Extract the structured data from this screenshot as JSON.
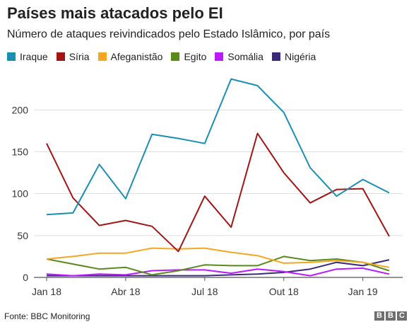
{
  "title": "Países mais atacados pelo EI",
  "subtitle": "Número de ataques reivindicados pelo Estado Islâmico, por país",
  "source": "Fonte: BBC Monitoring",
  "logo": [
    "B",
    "B",
    "C"
  ],
  "chart_data": {
    "type": "line",
    "x": [
      "2018-01",
      "2018-02",
      "2018-03",
      "2018-04",
      "2018-05",
      "2018-06",
      "2018-07",
      "2018-08",
      "2018-09",
      "2018-10",
      "2018-11",
      "2018-12",
      "2019-01",
      "2019-02"
    ],
    "xticks": [
      {
        "index": 0,
        "label": "Jan 18"
      },
      {
        "index": 3,
        "label": "Abr 18"
      },
      {
        "index": 6,
        "label": "Jul 18"
      },
      {
        "index": 9,
        "label": "Out 18"
      },
      {
        "index": 12,
        "label": "Jan 19"
      }
    ],
    "yticks": [
      0,
      50,
      100,
      150,
      200
    ],
    "ylim": [
      0,
      240
    ],
    "grid": true,
    "legend_position": "top",
    "series": [
      {
        "name": "Iraque",
        "color": "#1a8fb4",
        "values": [
          75,
          77,
          135,
          94,
          171,
          166,
          160,
          237,
          229,
          197,
          131,
          97,
          117,
          101
        ]
      },
      {
        "name": "Síria",
        "color": "#a31515",
        "values": [
          160,
          95,
          62,
          68,
          61,
          31,
          97,
          60,
          172,
          125,
          89,
          105,
          106,
          49
        ]
      },
      {
        "name": "Afeganistão",
        "color": "#f5a623",
        "values": [
          22,
          25,
          29,
          29,
          35,
          34,
          35,
          30,
          26,
          17,
          18,
          20,
          18,
          12
        ]
      },
      {
        "name": "Egito",
        "color": "#5a8a1a",
        "values": [
          22,
          16,
          10,
          12,
          3,
          8,
          15,
          14,
          14,
          25,
          20,
          22,
          18,
          8
        ]
      },
      {
        "name": "Somália",
        "color": "#bb1aff",
        "values": [
          4,
          2,
          4,
          3,
          8,
          9,
          9,
          5,
          10,
          7,
          2,
          10,
          11,
          4
        ]
      },
      {
        "name": "Nigéria",
        "color": "#3b2a7a",
        "values": [
          2,
          2,
          2,
          2,
          2,
          2,
          2,
          3,
          4,
          6,
          10,
          18,
          14,
          21
        ]
      }
    ]
  }
}
